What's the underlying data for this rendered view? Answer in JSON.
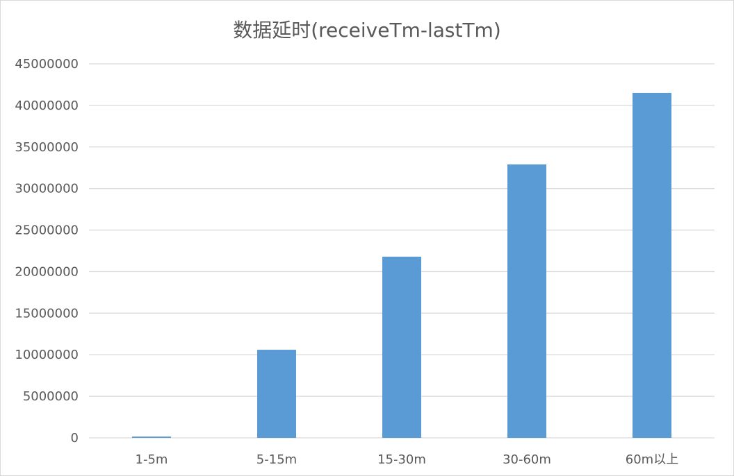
{
  "chart_data": {
    "type": "bar",
    "title": "数据延时(receiveTm-lastTm)",
    "xlabel": "",
    "ylabel": "",
    "categories": [
      "1-5m",
      "5-15m",
      "15-30m",
      "30-60m",
      "60m以上"
    ],
    "values": [
      150000,
      10600000,
      21800000,
      32900000,
      41500000
    ],
    "ylim": [
      0,
      45000000
    ],
    "yticks": [
      0,
      5000000,
      10000000,
      15000000,
      20000000,
      25000000,
      30000000,
      35000000,
      40000000,
      45000000
    ],
    "grid": true,
    "legend": "none",
    "colors": {
      "bar": "#5b9bd5",
      "grid": "#d9d9d9",
      "text": "#595959"
    }
  }
}
